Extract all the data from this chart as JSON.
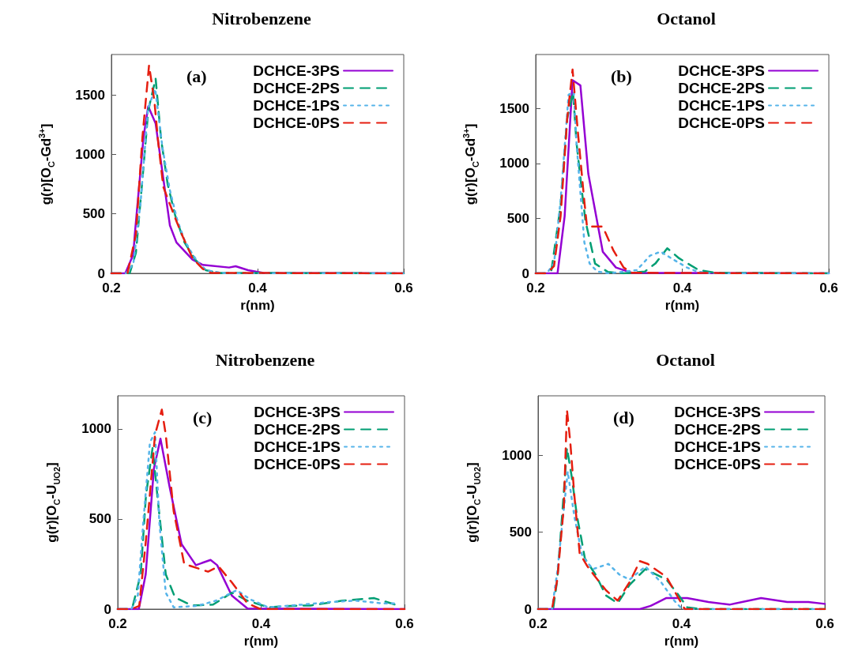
{
  "chart_data": [
    {
      "type": "line",
      "title": "Nitrobenzene",
      "xlabel": "r(nm)",
      "ylabel": "g(r)[O$_{C}$-Gd$^{3+}$]",
      "annotations": [
        "(a)"
      ],
      "xlim": [
        0.2,
        0.6
      ],
      "xticks": [
        0.2,
        0.4,
        0.6
      ],
      "ylim": [
        0,
        1840
      ],
      "yticks": [
        0,
        500,
        1000,
        1500
      ],
      "legend": "top right",
      "marker": "none",
      "grid": false,
      "series": [
        {
          "name": "DCHCE-3PS",
          "color": "#9400d3",
          "line_style": "solid",
          "x": [
            0.2,
            0.219,
            0.23,
            0.232,
            0.244,
            0.2504,
            0.2605,
            0.28,
            0.289,
            0.311,
            0.325,
            0.361,
            0.37,
            0.387,
            0.408,
            0.6
          ],
          "values": [
            0,
            0,
            160,
            327,
            1149,
            1404,
            1260,
            404,
            260,
            115,
            71,
            49,
            60,
            27,
            4,
            0
          ]
        },
        {
          "name": "DCHCE-2PS",
          "color": "#009e73",
          "line_style": "dashed",
          "x": [
            0.2,
            0.225,
            0.2335,
            0.2425,
            0.2505,
            0.2605,
            0.268,
            0.277,
            0.2875,
            0.3,
            0.3146,
            0.329,
            0.347,
            0.6
          ],
          "values": [
            0,
            0,
            171,
            793,
            1371,
            1638,
            1127,
            749,
            482,
            260,
            116,
            27,
            4,
            0
          ]
        },
        {
          "name": "DCHCE-1PS",
          "color": "#56b4e9",
          "line_style": "dotted",
          "x": [
            0.2,
            0.22,
            0.23,
            0.24,
            0.25,
            0.255,
            0.26,
            0.27,
            0.28,
            0.29,
            0.3,
            0.31,
            0.32,
            0.33,
            0.35,
            0.36,
            0.6
          ],
          "values": [
            0,
            0,
            80,
            600,
            1380,
            1470,
            1550,
            1050,
            700,
            450,
            280,
            170,
            80,
            25,
            5,
            0,
            0
          ]
        },
        {
          "name": "DCHCE-0PS",
          "color": "#e51e10",
          "line_style": "dashed",
          "x": [
            0.2,
            0.222,
            0.2335,
            0.2425,
            0.2515,
            0.2588,
            0.264,
            0.271,
            0.2876,
            0.298,
            0.311,
            0.325,
            0.336,
            0.6
          ],
          "values": [
            0,
            0,
            327,
            1149,
            1749,
            1449,
            1104,
            727,
            460,
            304,
            127,
            38,
            4,
            0
          ]
        }
      ]
    },
    {
      "type": "line",
      "title": "Octanol",
      "xlabel": "r(nm)",
      "ylabel": "g(r)[O$_{C}$-Gd$^{3+}$]",
      "annotations": [
        "(b)"
      ],
      "xlim": [
        0.2,
        0.6
      ],
      "xticks": [
        0.2,
        0.4,
        0.6
      ],
      "ylim": [
        0,
        1990
      ],
      "yticks": [
        0,
        500,
        1000,
        1500
      ],
      "legend": "top right",
      "marker": "none",
      "grid": false,
      "series": [
        {
          "name": "DCHCE-3PS",
          "color": "#9400d3",
          "line_style": "solid",
          "x": [
            0.2,
            0.2298,
            0.2395,
            0.2503,
            0.261,
            0.2718,
            0.2915,
            0.3095,
            0.331,
            0.6
          ],
          "values": [
            0,
            0,
            520,
            1757,
            1709,
            905,
            197,
            53,
            5,
            0
          ]
        },
        {
          "name": "DCHCE-2PS",
          "color": "#009e73",
          "line_style": "dashed",
          "x": [
            0.2,
            0.215,
            0.2215,
            0.234,
            0.243,
            0.251,
            0.2556,
            0.2628,
            0.268,
            0.281,
            0.2987,
            0.32,
            0.349,
            0.3633,
            0.3795,
            0.3957,
            0.4226,
            0.446,
            0.6
          ],
          "values": [
            0,
            0,
            29,
            617,
            1409,
            1649,
            1193,
            761,
            473,
            89,
            12,
            0,
            17,
            89,
            228,
            137,
            29,
            5,
            0
          ]
        },
        {
          "name": "DCHCE-1PS",
          "color": "#56b4e9",
          "line_style": "dotted",
          "x": [
            0.2,
            0.215,
            0.225,
            0.234,
            0.2449,
            0.252,
            0.2556,
            0.2664,
            0.2736,
            0.284,
            0.3,
            0.338,
            0.356,
            0.3705,
            0.385,
            0.4064,
            0.42,
            0.44,
            0.6
          ],
          "values": [
            0,
            0,
            89,
            665,
            1625,
            1649,
            1193,
            281,
            89,
            17,
            0,
            29,
            161,
            197,
            137,
            53,
            17,
            0,
            0
          ]
        },
        {
          "name": "DCHCE-0PS",
          "color": "#e51e10",
          "line_style": "dashed",
          "x": [
            0.2,
            0.215,
            0.225,
            0.234,
            0.243,
            0.2503,
            0.2575,
            0.2664,
            0.27,
            0.2915,
            0.306,
            0.32,
            0.331,
            0.6
          ],
          "values": [
            0,
            0,
            65,
            521,
            1409,
            1853,
            1289,
            653,
            425,
            425,
            209,
            53,
            5,
            0
          ]
        }
      ]
    },
    {
      "type": "line",
      "title": "Nitrobenzene",
      "xlabel": "r(nm)",
      "ylabel": "g(r)[O$_{C}$-U$_{UO2}$]",
      "annotations": [
        "(c)"
      ],
      "xlim": [
        0.2,
        0.6
      ],
      "xticks": [
        0.2,
        0.4,
        0.6
      ],
      "ylim": [
        0,
        1184
      ],
      "yticks": [
        0,
        500,
        1000
      ],
      "legend": "top right",
      "marker": "none",
      "grid": false,
      "series": [
        {
          "name": "DCHCE-3PS",
          "color": "#9400d3",
          "line_style": "solid",
          "x": [
            0.2,
            0.2294,
            0.239,
            0.2504,
            0.2596,
            0.2725,
            0.289,
            0.309,
            0.3295,
            0.3387,
            0.359,
            0.381,
            0.6
          ],
          "values": [
            0,
            0,
            193,
            778,
            946,
            675,
            361,
            244,
            273,
            244,
            76,
            3,
            0
          ]
        },
        {
          "name": "DCHCE-2PS",
          "color": "#009e73",
          "line_style": "dashed",
          "x": [
            0.2,
            0.215,
            0.221,
            0.232,
            0.2394,
            0.2486,
            0.256,
            0.267,
            0.28,
            0.3038,
            0.333,
            0.359,
            0.381,
            0.41,
            0.44,
            0.469,
            0.5135,
            0.5577,
            0.587
          ],
          "values": [
            0,
            0,
            18,
            193,
            632,
            895,
            602,
            193,
            64,
            20,
            25,
            91,
            47,
            10,
            18,
            20,
            47,
            61,
            25
          ]
        },
        {
          "name": "DCHCE-1PS",
          "color": "#56b4e9",
          "line_style": "dotted",
          "x": [
            0.2,
            0.219,
            0.228,
            0.2357,
            0.2449,
            0.252,
            0.258,
            0.267,
            0.278,
            0.311,
            0.337,
            0.366,
            0.385,
            0.41,
            0.458,
            0.495,
            0.532,
            0.569,
            0.587
          ],
          "values": [
            0,
            0,
            76,
            485,
            924,
            982,
            485,
            91,
            10,
            18,
            47,
            105,
            54,
            10,
            25,
            39,
            47,
            32,
            32
          ]
        },
        {
          "name": "DCHCE-0PS",
          "color": "#e51e10",
          "line_style": "dashed",
          "x": [
            0.2,
            0.219,
            0.23,
            0.239,
            0.252,
            0.2615,
            0.267,
            0.278,
            0.2927,
            0.326,
            0.3406,
            0.359,
            0.381,
            0.399,
            0.6
          ],
          "values": [
            0,
            0,
            18,
            368,
            968,
            1107,
            968,
            544,
            251,
            208,
            237,
            149,
            32,
            0,
            0
          ]
        }
      ]
    },
    {
      "type": "line",
      "title": "Octanol",
      "xlabel": "r(nm)",
      "ylabel": "g(r)[O$_{C}$-U$_{UO2}$]",
      "annotations": [
        "(d)"
      ],
      "xlim": [
        0.2,
        0.6
      ],
      "xticks": [
        0.2,
        0.4,
        0.6
      ],
      "ylim": [
        0,
        1387
      ],
      "yticks": [
        0,
        500,
        1000
      ],
      "legend": "top right",
      "marker": "none",
      "grid": false,
      "series": [
        {
          "name": "DCHCE-3PS",
          "color": "#9400d3",
          "line_style": "solid",
          "x": [
            0.2,
            0.342,
            0.357,
            0.379,
            0.408,
            0.4376,
            0.467,
            0.511,
            0.5476,
            0.577,
            0.6
          ],
          "values": [
            0,
            0,
            21,
            72,
            72,
            46,
            29,
            72,
            46,
            46,
            34
          ]
        },
        {
          "name": "DCHCE-2PS",
          "color": "#009e73",
          "line_style": "dashed",
          "x": [
            0.2,
            0.221,
            0.2268,
            0.234,
            0.2403,
            0.247,
            0.2543,
            0.26,
            0.2653,
            0.28,
            0.2946,
            0.311,
            0.3276,
            0.3496,
            0.379,
            0.3936,
            0.408,
            0.426,
            0.6
          ],
          "values": [
            0,
            0,
            192,
            637,
            1048,
            859,
            603,
            466,
            329,
            226,
            89,
            38,
            158,
            260,
            192,
            106,
            12,
            0,
            0
          ]
        },
        {
          "name": "DCHCE-1PS",
          "color": "#56b4e9",
          "line_style": "dotted",
          "x": [
            0.2,
            0.2194,
            0.2268,
            0.236,
            0.2414,
            0.2506,
            0.2616,
            0.2763,
            0.298,
            0.313,
            0.3276,
            0.3496,
            0.3716,
            0.39,
            0.401,
            0.6
          ],
          "values": [
            0,
            0,
            243,
            654,
            894,
            603,
            346,
            260,
            294,
            226,
            192,
            277,
            175,
            55,
            0,
            0
          ]
        },
        {
          "name": "DCHCE-0PS",
          "color": "#e51e10",
          "line_style": "dashed",
          "x": [
            0.2,
            0.2194,
            0.2268,
            0.236,
            0.2403,
            0.245,
            0.2506,
            0.258,
            0.269,
            0.28,
            0.2946,
            0.311,
            0.3276,
            0.342,
            0.353,
            0.379,
            0.401,
            0.4046,
            0.6
          ],
          "values": [
            0,
            0,
            192,
            671,
            1296,
            1082,
            740,
            363,
            277,
            209,
            123,
            55,
            175,
            312,
            294,
            209,
            29,
            0,
            0
          ]
        }
      ]
    }
  ]
}
